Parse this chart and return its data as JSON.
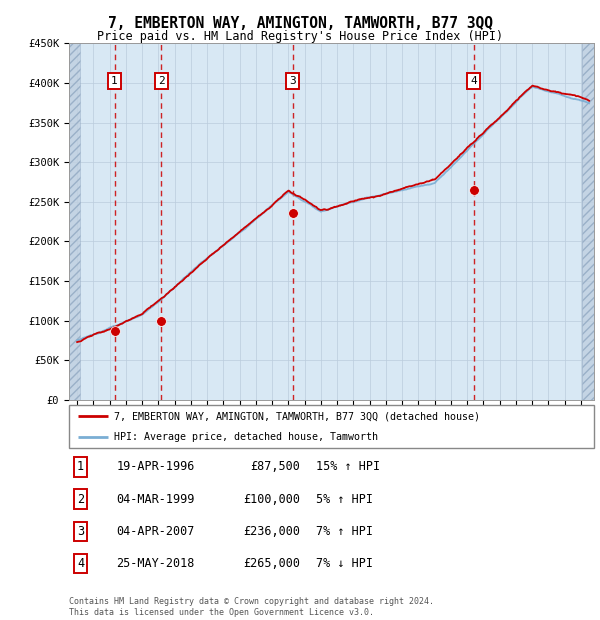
{
  "title": "7, EMBERTON WAY, AMINGTON, TAMWORTH, B77 3QQ",
  "subtitle": "Price paid vs. HM Land Registry's House Price Index (HPI)",
  "ytick_values": [
    0,
    50000,
    100000,
    150000,
    200000,
    250000,
    300000,
    350000,
    400000,
    450000
  ],
  "xmin": 1993.5,
  "xmax": 2025.8,
  "ymin": 0,
  "ymax": 450000,
  "sale_dates": [
    1996.3,
    1999.17,
    2007.27,
    2018.4
  ],
  "sale_prices": [
    87500,
    100000,
    236000,
    265000
  ],
  "sale_labels": [
    "1",
    "2",
    "3",
    "4"
  ],
  "legend_line1": "7, EMBERTON WAY, AMINGTON, TAMWORTH, B77 3QQ (detached house)",
  "legend_line2": "HPI: Average price, detached house, Tamworth",
  "table_rows": [
    {
      "num": "1",
      "date": "19-APR-1996",
      "price": "£87,500",
      "pct": "15% ↑ HPI"
    },
    {
      "num": "2",
      "date": "04-MAR-1999",
      "price": "£100,000",
      "pct": "5% ↑ HPI"
    },
    {
      "num": "3",
      "date": "04-APR-2007",
      "price": "£236,000",
      "pct": "7% ↑ HPI"
    },
    {
      "num": "4",
      "date": "25-MAY-2018",
      "price": "£265,000",
      "pct": "7% ↓ HPI"
    }
  ],
  "footer": "Contains HM Land Registry data © Crown copyright and database right 2024.\nThis data is licensed under the Open Government Licence v3.0.",
  "hpi_color": "#7aaed4",
  "price_color": "#cc0000",
  "sale_marker_color": "#cc0000",
  "vline_color": "#cc0000",
  "grid_color": "#bbccdd",
  "bg_color": "#d8e8f4",
  "plot_bg": "#ffffff"
}
